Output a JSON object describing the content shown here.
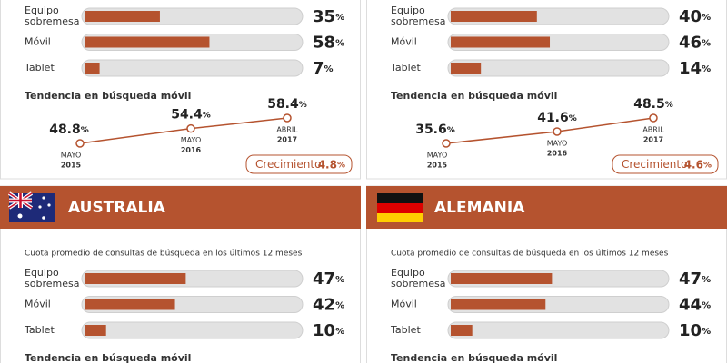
{
  "panels": [
    {
      "bars": [
        {
          "label": "Equipo sobremesa",
          "value": 35,
          "value_label": "35%"
        },
        {
          "label": "Móvil",
          "value": 58,
          "value_label": "58%"
        },
        {
          "label": "Tablet",
          "value": 7,
          "value_label": "7%"
        }
      ],
      "trend": {
        "title": "Tendencia en búsqueda móvil",
        "points": [
          {
            "value": 48.8,
            "value_label": "48.8%",
            "month": "MAYO",
            "year": "2015"
          },
          {
            "value": 54.4,
            "value_label": "54.4%",
            "month": "MAYO",
            "year": "2016"
          },
          {
            "value": 58.4,
            "value_label": "58.4%",
            "month": "ABRIL",
            "year": "2017"
          }
        ],
        "growth": {
          "label": "Crecimiento",
          "value": "4.8%"
        }
      }
    },
    {
      "bars": [
        {
          "label": "Equipo sobremesa",
          "value": 40,
          "value_label": "40%"
        },
        {
          "label": "Móvil",
          "value": 46,
          "value_label": "46%"
        },
        {
          "label": "Tablet",
          "value": 14,
          "value_label": "14%"
        }
      ],
      "trend": {
        "title": "Tendencia en búsqueda móvil",
        "points": [
          {
            "value": 35.6,
            "value_label": "35.6%",
            "month": "MAYO",
            "year": "2015"
          },
          {
            "value": 41.6,
            "value_label": "41.6%",
            "month": "MAYO",
            "year": "2016"
          },
          {
            "value": 48.5,
            "value_label": "48.5%",
            "month": "ABRIL",
            "year": "2017"
          }
        ],
        "growth": {
          "label": "Crecimiento",
          "value": "4.6%"
        }
      }
    },
    {
      "title": "AUSTRALIA",
      "subtitle": "Cuota promedio de consultas de búsqueda en los últimos 12 meses",
      "bars": [
        {
          "label": "Equipo sobremesa",
          "value": 47,
          "value_label": "47%"
        },
        {
          "label": "Móvil",
          "value": 42,
          "value_label": "42%"
        },
        {
          "label": "Tablet",
          "value": 10,
          "value_label": "10%"
        }
      ],
      "trend": {
        "title": "Tendencia en búsqueda móvil"
      }
    },
    {
      "title": "ALEMANIA",
      "subtitle": "Cuota promedio de consultas de búsqueda en los últimos 12 meses",
      "bars": [
        {
          "label": "Equipo sobremesa",
          "value": 47,
          "value_label": "47%"
        },
        {
          "label": "Móvil",
          "value": 44,
          "value_label": "44%"
        },
        {
          "label": "Tablet",
          "value": 10,
          "value_label": "10%"
        }
      ],
      "trend": {
        "title": "Tendencia en búsqueda móvil"
      }
    }
  ]
}
